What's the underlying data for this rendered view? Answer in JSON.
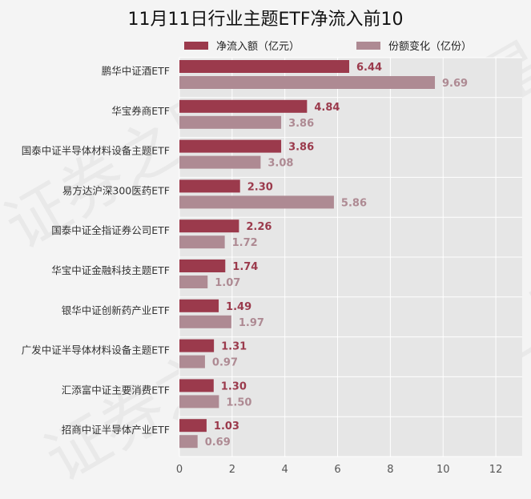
{
  "chart_data": {
    "type": "bar",
    "title": "11月11日行业主题ETF净流入前10",
    "categories": [
      "鹏华中证酒ETF",
      "华宝券商ETF",
      "国泰中证半导体材料设备主题ETF",
      "易方达沪深300医药ETF",
      "国泰中证全指证券公司ETF",
      "华宝中证金融科技主题ETF",
      "银华中证创新药产业ETF",
      "广发中证半导体材料设备主题ETF",
      "汇添富中证主要消费ETF",
      "招商中证半导体产业ETF"
    ],
    "series": [
      {
        "name": "净流入额（亿元）",
        "color": "#9b3a4c",
        "values": [
          6.44,
          4.84,
          3.86,
          2.3,
          2.26,
          1.74,
          1.49,
          1.31,
          1.3,
          1.03
        ],
        "labels": [
          "6.44",
          "4.84",
          "3.86",
          "2.30",
          "2.26",
          "1.74",
          "1.49",
          "1.31",
          "1.30",
          "1.03"
        ]
      },
      {
        "name": "份额变化（亿份）",
        "color": "#ae8a93",
        "values": [
          9.69,
          3.86,
          3.08,
          5.86,
          1.72,
          1.07,
          1.97,
          0.97,
          1.5,
          0.69
        ],
        "labels": [
          "9.69",
          "3.86",
          "3.08",
          "5.86",
          "1.72",
          "1.07",
          "1.97",
          "0.97",
          "1.50",
          "0.69"
        ]
      }
    ],
    "xlim": [
      0,
      13
    ],
    "xticks": [
      "0",
      "2",
      "4",
      "6",
      "8",
      "10",
      "12"
    ],
    "grid": true,
    "legend_position": "top",
    "watermark": "证券之星"
  }
}
